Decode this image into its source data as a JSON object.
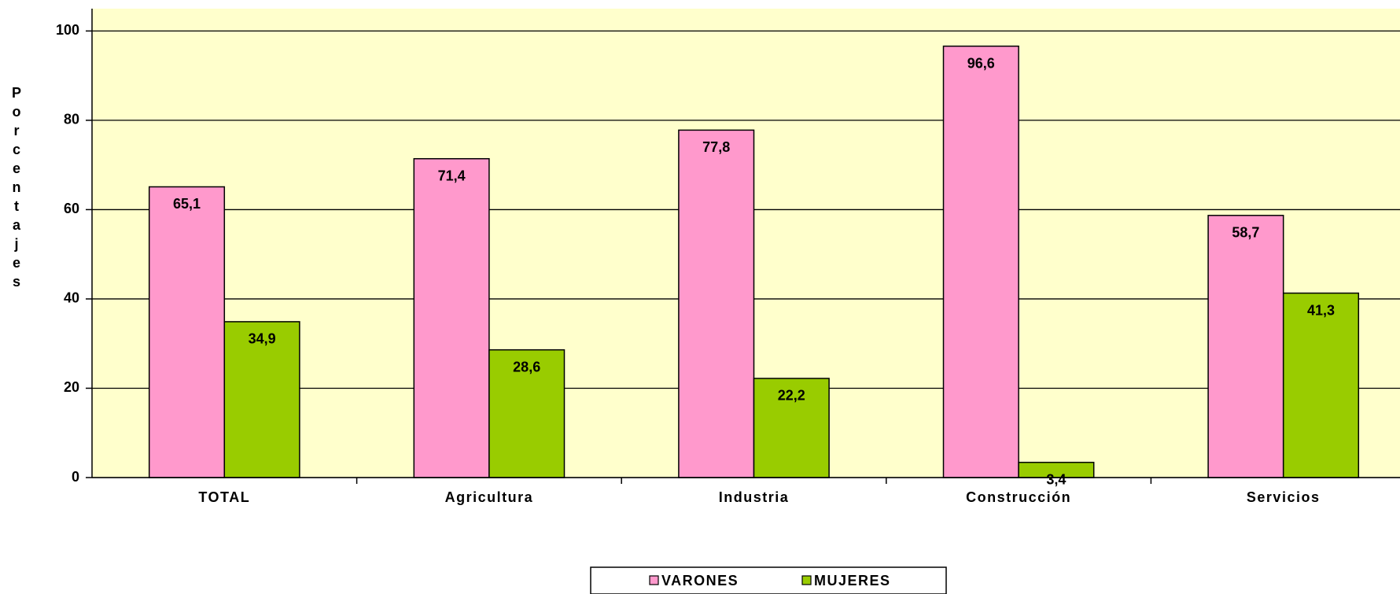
{
  "chart_data": {
    "type": "bar",
    "y_label": "Porcentajes",
    "categories": [
      "TOTAL",
      "Agricultura",
      "Industria",
      "Construcción",
      "Servicios"
    ],
    "series": [
      {
        "name": "VARONES",
        "color": "#ff99cc",
        "values": [
          65.1,
          71.4,
          77.8,
          96.6,
          58.7
        ],
        "value_labels": [
          "65,1",
          "71,4",
          "77,8",
          "96,6",
          "58,7"
        ]
      },
      {
        "name": "MUJERES",
        "color": "#99cc00",
        "values": [
          34.9,
          28.6,
          22.2,
          3.4,
          41.3
        ],
        "value_labels": [
          "34,9",
          "28,6",
          "22,2",
          "3,4",
          "41,3"
        ]
      }
    ],
    "ylim": [
      0,
      105
    ],
    "yticks": [
      0,
      20,
      40,
      60,
      80,
      100
    ],
    "grid": true,
    "plot_background": "#ffffcc",
    "legend": "bottom"
  }
}
